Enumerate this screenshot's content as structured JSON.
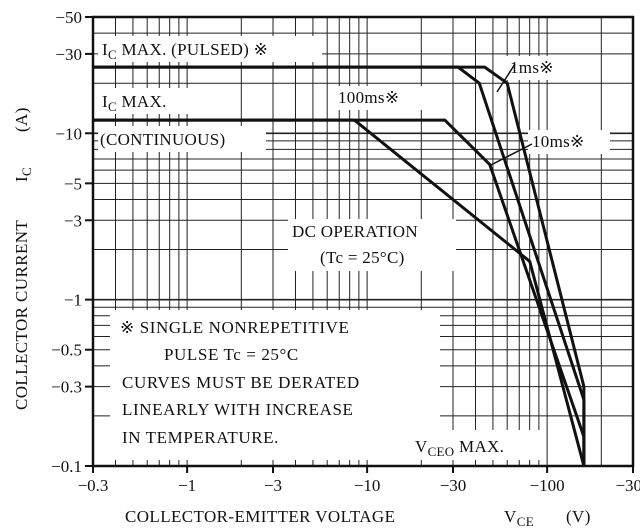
{
  "chart_data": {
    "type": "line",
    "xscale": "log",
    "yscale": "log",
    "xlim": [
      0.3,
      300
    ],
    "ylim": [
      0.1,
      50
    ],
    "grid": true,
    "xlabel": "COLLECTOR-EMITTER VOLTAGE",
    "xlabel_symbol": "V",
    "xlabel_symbol_sub": "CE",
    "xunit": "(V)",
    "ylabel": "COLLECTOR CURRENT",
    "ylabel_symbol": "I",
    "ylabel_symbol_sub": "C",
    "yunit": "(A)",
    "x_ticks": [
      {
        "value": 0.3,
        "label": "−0.3"
      },
      {
        "value": 1,
        "label": "−1"
      },
      {
        "value": 3,
        "label": "−3"
      },
      {
        "value": 10,
        "label": "−10"
      },
      {
        "value": 30,
        "label": "−30"
      },
      {
        "value": 100,
        "label": "−100"
      },
      {
        "value": 300,
        "label": "−300"
      }
    ],
    "y_ticks": [
      {
        "value": 50,
        "label": "−50"
      },
      {
        "value": 30,
        "label": "−30"
      },
      {
        "value": 10,
        "label": "−10"
      },
      {
        "value": 5,
        "label": "−5"
      },
      {
        "value": 3,
        "label": "−3"
      },
      {
        "value": 1,
        "label": "−1"
      },
      {
        "value": 0.5,
        "label": "−0.5"
      },
      {
        "value": 0.3,
        "label": "−0.3"
      },
      {
        "value": 0.1,
        "label": "−0.1"
      }
    ],
    "series": [
      {
        "name": "1ms※",
        "points": [
          [
            0.3,
            25
          ],
          [
            45,
            25
          ],
          [
            60,
            20
          ],
          [
            160,
            0.3
          ],
          [
            160,
            0.1
          ]
        ]
      },
      {
        "name": "10ms※",
        "points": [
          [
            0.3,
            25
          ],
          [
            32,
            25
          ],
          [
            42,
            20
          ],
          [
            160,
            0.25
          ],
          [
            160,
            0.1
          ]
        ]
      },
      {
        "name": "100ms※",
        "points": [
          [
            0.3,
            12
          ],
          [
            27,
            12
          ],
          [
            48,
            6.5
          ],
          [
            160,
            0.15
          ],
          [
            160,
            0.1
          ]
        ]
      },
      {
        "name": "DC OPERATION (Tc=25°C)",
        "points": [
          [
            0.3,
            12
          ],
          [
            8.5,
            12
          ],
          [
            80,
            1.7
          ],
          [
            160,
            0.1
          ]
        ]
      }
    ],
    "annotations": {
      "ic_max_pulsed": "IC MAX. (PULSED) ※",
      "ic_max_pulsed_main": "I",
      "ic_max_pulsed_sub": "C",
      "ic_max_pulsed_rest": " MAX. (PULSED) ※",
      "ic_max": "IC MAX.",
      "ic_max_main": "I",
      "ic_max_sub": "C",
      "ic_max_rest": " MAX.",
      "continuous": "(CONTINUOUS)",
      "label_1ms": "1ms※",
      "label_10ms": "10ms※",
      "label_100ms": "100ms※",
      "dc_line1": "DC OPERATION",
      "dc_line2": "(Tc = 25°C)",
      "note_line1": "※  SINGLE NONREPETITIVE",
      "note_line2": "PULSE  Tc = 25°C",
      "note_line3": "CURVES MUST BE DERATED",
      "note_line4": "LINEARLY WITH INCREASE",
      "note_line5": "IN TEMPERATURE.",
      "vceo_main": "V",
      "vceo_sub": "CEO",
      "vceo_rest": " MAX."
    }
  }
}
